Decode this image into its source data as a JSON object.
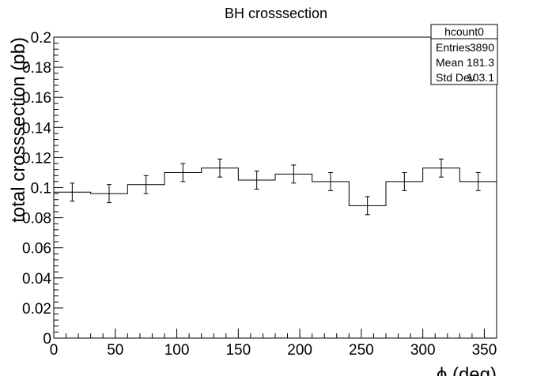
{
  "chart_data": {
    "type": "histogram",
    "title": "BH crosssection",
    "xlabel": "ϕ (deg)",
    "ylabel": "total crosssection (pb)",
    "xlim": [
      0,
      360
    ],
    "ylim": [
      0,
      0.2
    ],
    "x_ticks": [
      0,
      50,
      100,
      150,
      200,
      250,
      300,
      350
    ],
    "y_ticks": [
      0,
      0.02,
      0.04,
      0.06,
      0.08,
      0.1,
      0.12,
      0.14,
      0.16,
      0.18,
      0.2
    ],
    "y_tick_labels": [
      "0",
      "0.02",
      "0.04",
      "0.06",
      "0.08",
      "0.1",
      "0.12",
      "0.14",
      "0.16",
      "0.18",
      "0.2"
    ],
    "bin_edges": [
      0,
      30,
      60,
      90,
      120,
      150,
      180,
      210,
      240,
      270,
      300,
      330,
      360
    ],
    "values": [
      0.097,
      0.096,
      0.102,
      0.11,
      0.113,
      0.105,
      0.109,
      0.104,
      0.088,
      0.104,
      0.113,
      0.104
    ],
    "errors": [
      0.006,
      0.006,
      0.006,
      0.006,
      0.006,
      0.006,
      0.006,
      0.006,
      0.006,
      0.006,
      0.006,
      0.006
    ],
    "grid": false,
    "stats_box": {
      "name": "hcount0",
      "rows": [
        {
          "label": "Entries",
          "value": "3890"
        },
        {
          "label": "Mean",
          "value": "181.3"
        },
        {
          "label": "Std Dev",
          "value": "103.1"
        }
      ]
    }
  }
}
